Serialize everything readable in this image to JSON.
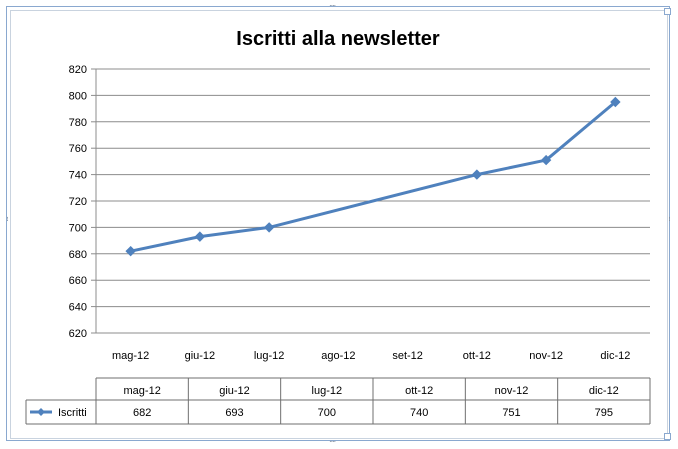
{
  "chart_data": {
    "type": "line",
    "title": "Iscritti alla newsletter",
    "categories": [
      "mag-12",
      "giu-12",
      "lug-12",
      "ago-12",
      "set-12",
      "ott-12",
      "nov-12",
      "dic-12"
    ],
    "series": [
      {
        "name": "Iscritti",
        "color": "#4f81bd",
        "values": [
          682,
          693,
          700,
          null,
          null,
          740,
          751,
          795
        ]
      }
    ],
    "ylim": [
      620,
      820
    ],
    "yticks": [
      "620",
      "640",
      "660",
      "680",
      "700",
      "720",
      "740",
      "760",
      "780",
      "800",
      "820"
    ],
    "grid": true,
    "data_table": {
      "columns": [
        "mag-12",
        "giu-12",
        "lug-12",
        "ott-12",
        "nov-12",
        "dic-12"
      ],
      "rows": [
        {
          "label": "Iscritti",
          "values": [
            "682",
            "693",
            "700",
            "740",
            "751",
            "795"
          ]
        }
      ]
    }
  }
}
